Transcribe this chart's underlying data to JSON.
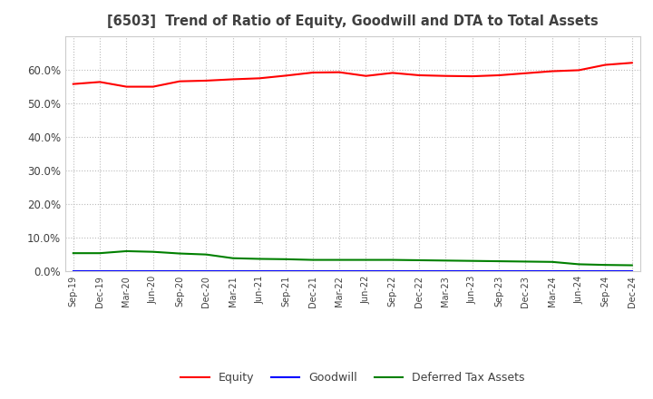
{
  "title": "[6503]  Trend of Ratio of Equity, Goodwill and DTA to Total Assets",
  "labels": [
    "Sep-19",
    "Dec-19",
    "Mar-20",
    "Jun-20",
    "Sep-20",
    "Dec-20",
    "Mar-21",
    "Jun-21",
    "Sep-21",
    "Dec-21",
    "Mar-22",
    "Jun-22",
    "Sep-22",
    "Dec-22",
    "Mar-23",
    "Jun-23",
    "Sep-23",
    "Dec-23",
    "Mar-24",
    "Jun-24",
    "Sep-24",
    "Dec-24"
  ],
  "equity": [
    0.557,
    0.563,
    0.549,
    0.549,
    0.565,
    0.567,
    0.571,
    0.574,
    0.582,
    0.591,
    0.592,
    0.581,
    0.59,
    0.583,
    0.581,
    0.58,
    0.583,
    0.589,
    0.595,
    0.598,
    0.614,
    0.62
  ],
  "goodwill": [
    0.0,
    0.0,
    0.0,
    0.0,
    0.0,
    0.0,
    0.0,
    0.0,
    0.0,
    0.0,
    0.0,
    0.0,
    0.0,
    0.0,
    0.0,
    0.0,
    0.0,
    0.0,
    0.0,
    0.0,
    0.0,
    0.0
  ],
  "dta": [
    0.054,
    0.054,
    0.06,
    0.058,
    0.053,
    0.05,
    0.039,
    0.037,
    0.036,
    0.034,
    0.034,
    0.034,
    0.034,
    0.033,
    0.032,
    0.031,
    0.03,
    0.029,
    0.028,
    0.021,
    0.019,
    0.018
  ],
  "equity_color": "#FF0000",
  "goodwill_color": "#0000FF",
  "dta_color": "#008000",
  "title_color": "#404040",
  "background_color": "#FFFFFF",
  "plot_bg_color": "#FFFFFF",
  "grid_color": "#BBBBBB",
  "ylim": [
    0.0,
    0.7
  ],
  "yticks": [
    0.0,
    0.1,
    0.2,
    0.3,
    0.4,
    0.5,
    0.6
  ]
}
